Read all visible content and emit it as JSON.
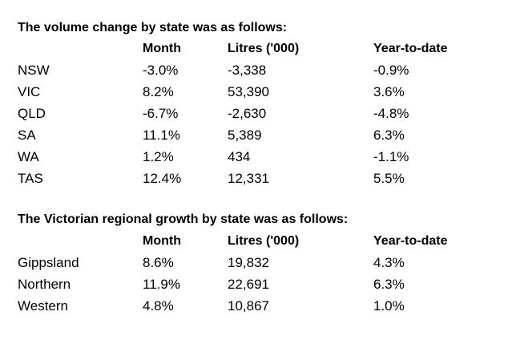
{
  "tables": [
    {
      "heading": "The volume change by state was as follows:",
      "columns": [
        "Month",
        "Litres ('000)",
        "Year-to-date"
      ],
      "rows": [
        {
          "label": "NSW",
          "month": "-3.0%",
          "litres": "-3,338",
          "ytd": "-0.9%"
        },
        {
          "label": "VIC",
          "month": "8.2%",
          "litres": "53,390",
          "ytd": "3.6%"
        },
        {
          "label": "QLD",
          "month": "-6.7%",
          "litres": "-2,630",
          "ytd": "-4.8%"
        },
        {
          "label": "SA",
          "month": "11.1%",
          "litres": "5,389",
          "ytd": "6.3%"
        },
        {
          "label": "WA",
          "month": "1.2%",
          "litres": "434",
          "ytd": "-1.1%"
        },
        {
          "label": "TAS",
          "month": "12.4%",
          "litres": "12,331",
          "ytd": "5.5%"
        }
      ]
    },
    {
      "heading": "The Victorian regional growth by state was as follows:",
      "columns": [
        "Month",
        "Litres ('000)",
        "Year-to-date"
      ],
      "rows": [
        {
          "label": "Gippsland",
          "month": "8.6%",
          "litres": "19,832",
          "ytd": "4.3%"
        },
        {
          "label": "Northern",
          "month": "11.9%",
          "litres": "22,691",
          "ytd": "6.3%"
        },
        {
          "label": "Western",
          "month": "4.8%",
          "litres": "10,867",
          "ytd": "1.0%"
        }
      ]
    }
  ]
}
